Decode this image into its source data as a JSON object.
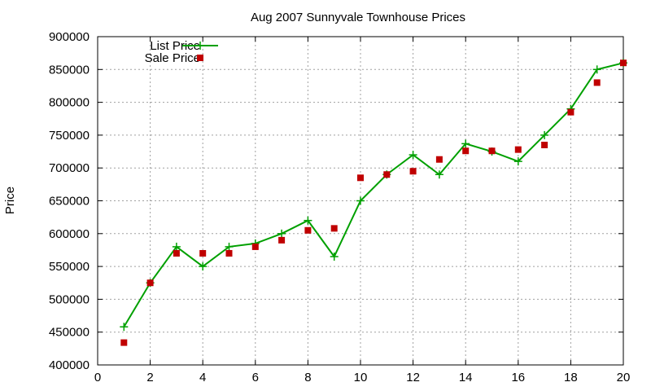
{
  "chart_data": {
    "type": "line",
    "title": "Aug 2007 Sunnyvale Townhouse Prices",
    "xlabel": "",
    "ylabel": "Price",
    "xlim": [
      0,
      20
    ],
    "ylim": [
      400000,
      900000
    ],
    "xticks": [
      0,
      2,
      4,
      6,
      8,
      10,
      12,
      14,
      16,
      18,
      20
    ],
    "yticks": [
      400000,
      450000,
      500000,
      550000,
      600000,
      650000,
      700000,
      750000,
      800000,
      850000,
      900000
    ],
    "grid": true,
    "legend_position": "top-left",
    "x": [
      1,
      2,
      3,
      4,
      5,
      6,
      7,
      8,
      9,
      10,
      11,
      12,
      13,
      14,
      15,
      16,
      17,
      18,
      19,
      20
    ],
    "series": [
      {
        "name": "List Price",
        "style": "linespoints",
        "color": "#00a000",
        "marker": "plus",
        "values": [
          458000,
          525000,
          580000,
          550000,
          580000,
          585000,
          600000,
          620000,
          565000,
          650000,
          690000,
          720000,
          690000,
          737000,
          725000,
          710000,
          750000,
          790000,
          850000,
          860000
        ]
      },
      {
        "name": "Sale Price",
        "style": "points",
        "color": "#c00000",
        "marker": "square",
        "values": [
          434000,
          525000,
          570000,
          570000,
          570000,
          580000,
          590000,
          605000,
          608000,
          685000,
          690000,
          695000,
          713000,
          726000,
          726000,
          728000,
          735000,
          785000,
          830000,
          860000
        ]
      }
    ]
  }
}
